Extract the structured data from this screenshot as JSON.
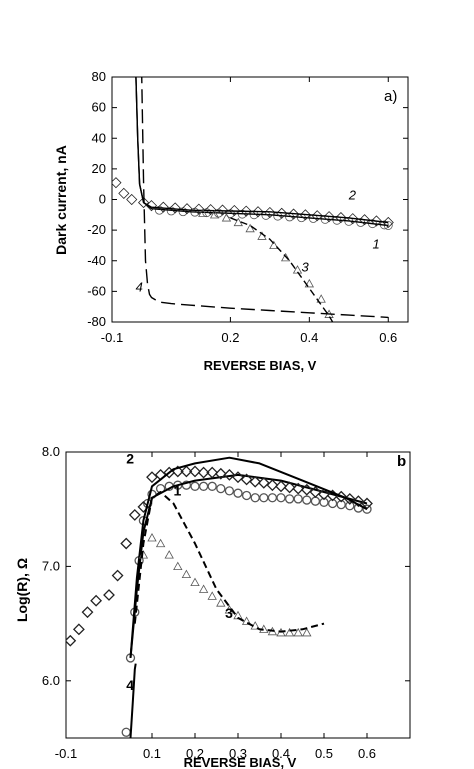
{
  "chart_data": [
    {
      "type": "line",
      "panel_label": "a)",
      "ylabel": "Dark current, nA",
      "xlabel": "REVERSE BIAS, V",
      "xlim": [
        -0.1,
        0.65
      ],
      "ylim": [
        -80,
        80
      ],
      "xticks": [
        -0.1,
        0.2,
        0.4,
        0.6
      ],
      "yticks": [
        80,
        60,
        40,
        20,
        0,
        -20,
        -40,
        -60,
        -80
      ],
      "series": [
        {
          "curve_label": "1",
          "style": "solid-with-circles",
          "line": [
            [
              -0.04,
              85
            ],
            [
              -0.035,
              40
            ],
            [
              -0.03,
              10
            ],
            [
              -0.02,
              -2
            ],
            [
              0.0,
              -6
            ],
            [
              0.1,
              -8
            ],
            [
              0.2,
              -9
            ],
            [
              0.3,
              -10
            ],
            [
              0.4,
              -12
            ],
            [
              0.5,
              -14
            ],
            [
              0.6,
              -17
            ]
          ],
          "markers": [
            [
              0.02,
              -7
            ],
            [
              0.05,
              -7.5
            ],
            [
              0.08,
              -8
            ],
            [
              0.11,
              -8.3
            ],
            [
              0.14,
              -8.6
            ],
            [
              0.17,
              -8.9
            ],
            [
              0.2,
              -9.2
            ],
            [
              0.23,
              -9.6
            ],
            [
              0.26,
              -10
            ],
            [
              0.29,
              -10.4
            ],
            [
              0.32,
              -10.9
            ],
            [
              0.35,
              -11.4
            ],
            [
              0.38,
              -11.9
            ],
            [
              0.41,
              -12.4
            ],
            [
              0.44,
              -13
            ],
            [
              0.47,
              -13.6
            ],
            [
              0.5,
              -14.3
            ],
            [
              0.53,
              -15
            ],
            [
              0.56,
              -15.8
            ],
            [
              0.59,
              -16.6
            ],
            [
              0.6,
              -17
            ]
          ]
        },
        {
          "curve_label": "2",
          "style": "solid-with-diamonds",
          "line": [
            [
              -0.04,
              85
            ],
            [
              -0.035,
              40
            ],
            [
              -0.03,
              10
            ],
            [
              -0.02,
              -2
            ],
            [
              0.0,
              -5
            ],
            [
              0.1,
              -7
            ],
            [
              0.2,
              -7.5
            ],
            [
              0.3,
              -8
            ],
            [
              0.4,
              -10
            ],
            [
              0.5,
              -12
            ],
            [
              0.6,
              -15
            ]
          ],
          "markers": [
            [
              -0.09,
              11
            ],
            [
              -0.07,
              4
            ],
            [
              -0.05,
              0
            ],
            [
              -0.02,
              -2
            ],
            [
              0.0,
              -4
            ],
            [
              0.03,
              -5
            ],
            [
              0.06,
              -5.5
            ],
            [
              0.09,
              -6
            ],
            [
              0.12,
              -6.3
            ],
            [
              0.15,
              -6.6
            ],
            [
              0.18,
              -6.9
            ],
            [
              0.21,
              -7.2
            ],
            [
              0.24,
              -7.6
            ],
            [
              0.27,
              -8
            ],
            [
              0.3,
              -8.5
            ],
            [
              0.33,
              -9
            ],
            [
              0.36,
              -9.5
            ],
            [
              0.39,
              -10
            ],
            [
              0.42,
              -10.6
            ],
            [
              0.45,
              -11.2
            ],
            [
              0.48,
              -11.8
            ],
            [
              0.51,
              -12.5
            ],
            [
              0.54,
              -13.2
            ],
            [
              0.57,
              -14
            ],
            [
              0.6,
              -15
            ]
          ]
        },
        {
          "curve_label": "3",
          "style": "dashed-with-triangles",
          "line": [
            [
              0.2,
              -12
            ],
            [
              0.25,
              -17
            ],
            [
              0.3,
              -26
            ],
            [
              0.35,
              -40
            ],
            [
              0.4,
              -58
            ],
            [
              0.45,
              -76
            ],
            [
              0.47,
              -85
            ]
          ],
          "markers": [
            [
              0.13,
              -9
            ],
            [
              0.16,
              -10
            ],
            [
              0.19,
              -12
            ],
            [
              0.22,
              -15
            ],
            [
              0.25,
              -19
            ],
            [
              0.28,
              -24
            ],
            [
              0.31,
              -30
            ],
            [
              0.34,
              -38
            ],
            [
              0.37,
              -46
            ],
            [
              0.4,
              -55
            ],
            [
              0.43,
              -65
            ],
            [
              0.45,
              -75
            ]
          ]
        },
        {
          "curve_label": "4",
          "style": "long-dash",
          "line": [
            [
              -0.025,
              85
            ],
            [
              -0.02,
              10
            ],
            [
              -0.015,
              -40
            ],
            [
              -0.01,
              -55
            ],
            [
              -0.005,
              -62
            ],
            [
              0.0,
              -64
            ],
            [
              0.02,
              -67
            ],
            [
              0.05,
              -68
            ],
            [
              0.1,
              -69
            ],
            [
              0.2,
              -71
            ],
            [
              0.3,
              -72.5
            ],
            [
              0.4,
              -74
            ],
            [
              0.5,
              -75.5
            ],
            [
              0.6,
              -77
            ]
          ]
        }
      ]
    },
    {
      "type": "line",
      "panel_label": "b",
      "ylabel": "Log(R), Ω",
      "xlabel": "REVERSE BIAS, V",
      "xlim": [
        -0.1,
        0.7
      ],
      "ylim": [
        5.5,
        8.0
      ],
      "xticks": [
        -0.1,
        0.1,
        0.2,
        0.3,
        0.4,
        0.5,
        0.6
      ],
      "yticks": [
        8.0,
        7.0,
        6.0
      ],
      "series": [
        {
          "curve_label": "1",
          "style": "solid-with-circles",
          "line": [
            [
              0.05,
              6.2
            ],
            [
              0.065,
              6.8
            ],
            [
              0.08,
              7.3
            ],
            [
              0.1,
              7.6
            ],
            [
              0.15,
              7.7
            ],
            [
              0.2,
              7.75
            ],
            [
              0.3,
              7.8
            ],
            [
              0.4,
              7.75
            ],
            [
              0.5,
              7.65
            ],
            [
              0.6,
              7.55
            ]
          ],
          "markers": [
            [
              0.04,
              5.55
            ],
            [
              0.05,
              6.2
            ],
            [
              0.06,
              6.6
            ],
            [
              0.07,
              7.05
            ],
            [
              0.08,
              7.4
            ],
            [
              0.09,
              7.55
            ],
            [
              0.1,
              7.63
            ],
            [
              0.12,
              7.68
            ],
            [
              0.14,
              7.7
            ],
            [
              0.16,
              7.71
            ],
            [
              0.18,
              7.71
            ],
            [
              0.2,
              7.7
            ],
            [
              0.22,
              7.7
            ],
            [
              0.24,
              7.7
            ],
            [
              0.26,
              7.68
            ],
            [
              0.28,
              7.66
            ],
            [
              0.3,
              7.64
            ],
            [
              0.32,
              7.62
            ],
            [
              0.34,
              7.6
            ],
            [
              0.36,
              7.6
            ],
            [
              0.38,
              7.6
            ],
            [
              0.4,
              7.6
            ],
            [
              0.42,
              7.59
            ],
            [
              0.44,
              7.59
            ],
            [
              0.46,
              7.58
            ],
            [
              0.48,
              7.57
            ],
            [
              0.5,
              7.56
            ],
            [
              0.52,
              7.55
            ],
            [
              0.54,
              7.54
            ],
            [
              0.56,
              7.53
            ],
            [
              0.58,
              7.51
            ],
            [
              0.6,
              7.5
            ]
          ]
        },
        {
          "curve_label": "2",
          "style": "solid-with-diamonds",
          "line": [
            [
              0.05,
              6.2
            ],
            [
              0.065,
              6.9
            ],
            [
              0.08,
              7.4
            ],
            [
              0.1,
              7.7
            ],
            [
              0.15,
              7.85
            ],
            [
              0.2,
              7.9
            ],
            [
              0.28,
              7.95
            ],
            [
              0.35,
              7.9
            ],
            [
              0.45,
              7.75
            ],
            [
              0.55,
              7.6
            ],
            [
              0.6,
              7.5
            ]
          ],
          "markers": [
            [
              -0.09,
              6.35
            ],
            [
              -0.07,
              6.45
            ],
            [
              -0.05,
              6.6
            ],
            [
              -0.03,
              6.7
            ],
            [
              0.0,
              6.75
            ],
            [
              0.02,
              6.92
            ],
            [
              0.04,
              7.2
            ],
            [
              0.06,
              7.45
            ],
            [
              0.08,
              7.52
            ],
            [
              0.1,
              7.78
            ],
            [
              0.12,
              7.8
            ],
            [
              0.14,
              7.82
            ],
            [
              0.16,
              7.83
            ],
            [
              0.18,
              7.83
            ],
            [
              0.2,
              7.83
            ],
            [
              0.22,
              7.82
            ],
            [
              0.24,
              7.82
            ],
            [
              0.26,
              7.81
            ],
            [
              0.28,
              7.8
            ],
            [
              0.3,
              7.78
            ],
            [
              0.32,
              7.76
            ],
            [
              0.34,
              7.74
            ],
            [
              0.36,
              7.73
            ],
            [
              0.38,
              7.71
            ],
            [
              0.4,
              7.7
            ],
            [
              0.42,
              7.69
            ],
            [
              0.44,
              7.68
            ],
            [
              0.46,
              7.67
            ],
            [
              0.48,
              7.65
            ],
            [
              0.5,
              7.63
            ],
            [
              0.52,
              7.62
            ],
            [
              0.54,
              7.61
            ],
            [
              0.56,
              7.59
            ],
            [
              0.58,
              7.57
            ],
            [
              0.6,
              7.55
            ]
          ]
        },
        {
          "curve_label": "3",
          "style": "dashed-with-triangles",
          "line": [
            [
              0.06,
              6.5
            ],
            [
              0.08,
              7.2
            ],
            [
              0.1,
              7.6
            ],
            [
              0.12,
              7.65
            ],
            [
              0.15,
              7.55
            ],
            [
              0.2,
              7.2
            ],
            [
              0.25,
              6.8
            ],
            [
              0.3,
              6.55
            ],
            [
              0.35,
              6.45
            ],
            [
              0.4,
              6.43
            ],
            [
              0.45,
              6.45
            ],
            [
              0.5,
              6.5
            ]
          ],
          "markers": [
            [
              0.08,
              7.1
            ],
            [
              0.1,
              7.25
            ],
            [
              0.12,
              7.2
            ],
            [
              0.14,
              7.1
            ],
            [
              0.16,
              7.0
            ],
            [
              0.18,
              6.93
            ],
            [
              0.2,
              6.86
            ],
            [
              0.22,
              6.8
            ],
            [
              0.24,
              6.74
            ],
            [
              0.26,
              6.68
            ],
            [
              0.28,
              6.62
            ],
            [
              0.3,
              6.57
            ],
            [
              0.32,
              6.52
            ],
            [
              0.34,
              6.48
            ],
            [
              0.36,
              6.45
            ],
            [
              0.38,
              6.43
            ],
            [
              0.4,
              6.42
            ],
            [
              0.42,
              6.42
            ],
            [
              0.44,
              6.42
            ],
            [
              0.46,
              6.42
            ]
          ]
        },
        {
          "curve_label": "4",
          "style": "solid",
          "line": [
            [
              0.05,
              5.5
            ],
            [
              0.055,
              5.8
            ],
            [
              0.06,
              6.1
            ],
            [
              0.062,
              6.15
            ]
          ]
        }
      ]
    }
  ]
}
